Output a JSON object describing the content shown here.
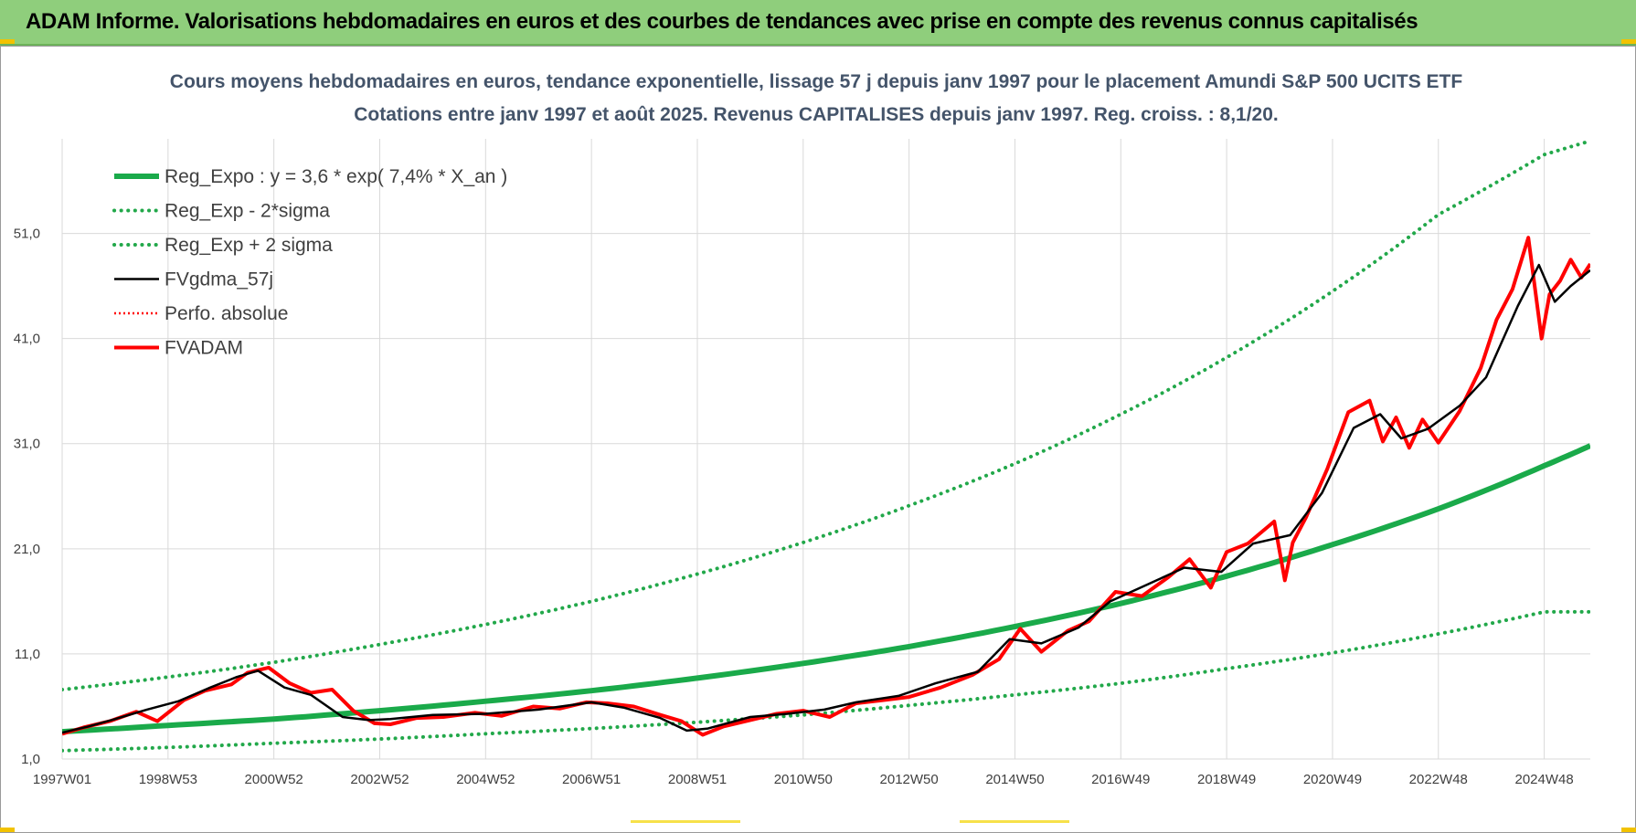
{
  "header": {
    "title": "ADAM Informe. Valorisations hebdomadaires en euros et des courbes de tendances avec prise en compte des revenus connus capitalisés"
  },
  "colors": {
    "banner": "#8fce7c",
    "reg_expo": "#1aaa4a",
    "reg_band": "#22a84a",
    "fvgdma": "#000000",
    "fvadam": "#ff0000",
    "perfo": "#ff0000",
    "grid": "#d9d9d9",
    "title_text": "#44546a"
  },
  "chart_data": {
    "type": "line",
    "title_line1": "Cours moyens hebdomadaires en euros, tendance exponentielle, lissage 57 j depuis janv 1997 pour le placement Amundi S&P 500 UCITS ETF",
    "title_line2": "Cotations entre janv 1997 et août 2025. Revenus CAPITALISES depuis janv 1997. Reg. croiss. : 8,1/20.",
    "xlabel": "",
    "ylabel": "",
    "x_ticks": [
      "1997W01",
      "1998W53",
      "2000W52",
      "2002W52",
      "2004W52",
      "2006W51",
      "2008W51",
      "2010W50",
      "2012W50",
      "2014W50",
      "2016W49",
      "2018W49",
      "2020W49",
      "2022W48",
      "2024W48"
    ],
    "x_tick_years": [
      1997.0,
      1999.0,
      2001.0,
      2003.0,
      2005.0,
      2007.0,
      2009.0,
      2011.0,
      2013.0,
      2015.0,
      2017.0,
      2019.0,
      2021.0,
      2023.0,
      2025.0
    ],
    "x_range": [
      1997.0,
      2025.87
    ],
    "y_ticks": [
      "1,0",
      "11,0",
      "21,0",
      "31,0",
      "41,0",
      "51,0"
    ],
    "y_tick_values": [
      1,
      11,
      21,
      31,
      41,
      51
    ],
    "ylim": [
      1,
      60
    ],
    "grid": true,
    "legend_position": "top-left",
    "series": [
      {
        "name": "Reg_Expo : y = 3,6 * exp( 7,4% *  X_an )",
        "style": "solid-thick",
        "x": [
          1997.0,
          1999.0,
          2001.0,
          2003.0,
          2005.0,
          2007.0,
          2009.0,
          2011.0,
          2013.0,
          2015.0,
          2017.0,
          2019.0,
          2021.0,
          2023.0,
          2025.0,
          2025.87
        ],
        "values": [
          3.6,
          4.2,
          4.8,
          5.6,
          6.5,
          7.5,
          8.7,
          10.1,
          11.7,
          13.6,
          15.8,
          18.4,
          21.4,
          24.8,
          28.9,
          30.8
        ]
      },
      {
        "name": "Reg_Exp - 2*sigma",
        "style": "dotted",
        "x": [
          1997.0,
          1999.0,
          2001.0,
          2003.0,
          2005.0,
          2007.0,
          2009.0,
          2011.0,
          2013.0,
          2015.0,
          2017.0,
          2019.0,
          2021.0,
          2023.0,
          2025.0,
          2025.87
        ],
        "values": [
          1.8,
          2.1,
          2.5,
          2.9,
          3.4,
          3.9,
          4.5,
          5.2,
          6.1,
          7.1,
          8.2,
          9.6,
          11.1,
          12.9,
          15.0,
          15.0
        ]
      },
      {
        "name": "Reg_Exp + 2 sigma",
        "style": "dotted",
        "x": [
          1997.0,
          1999.0,
          2001.0,
          2003.0,
          2005.0,
          2007.0,
          2009.0,
          2011.0,
          2013.0,
          2015.0,
          2017.0,
          2019.0,
          2021.0,
          2023.0,
          2025.0,
          2025.87
        ],
        "values": [
          7.6,
          8.8,
          10.2,
          11.9,
          13.8,
          16.0,
          18.6,
          21.6,
          25.1,
          29.1,
          33.8,
          39.2,
          45.5,
          52.8,
          58.5,
          59.8
        ]
      },
      {
        "name": "FVgdma_57j",
        "style": "solid",
        "x": [
          1997.0,
          1997.5,
          1998.0,
          1998.6,
          1999.2,
          1999.8,
          2000.3,
          2000.7,
          2001.2,
          2001.7,
          2002.3,
          2002.8,
          2003.2,
          2004.0,
          2005.0,
          2006.0,
          2007.0,
          2007.6,
          2008.3,
          2008.8,
          2009.2,
          2010.0,
          2010.7,
          2011.4,
          2012.0,
          2012.8,
          2013.5,
          2014.3,
          2014.9,
          2015.5,
          2016.2,
          2016.8,
          2017.5,
          2018.2,
          2018.9,
          2019.5,
          2020.2,
          2020.8,
          2021.4,
          2021.9,
          2022.3,
          2022.8,
          2023.4,
          2023.9,
          2024.5,
          2024.9,
          2025.2,
          2025.5,
          2025.87
        ],
        "values": [
          3.5,
          4.1,
          4.8,
          5.7,
          6.5,
          7.8,
          8.8,
          9.4,
          7.8,
          7.1,
          5.0,
          4.7,
          4.8,
          5.2,
          5.3,
          5.7,
          6.4,
          5.9,
          4.9,
          3.7,
          3.9,
          5.0,
          5.3,
          5.7,
          6.4,
          7.0,
          8.2,
          9.3,
          12.4,
          12.0,
          13.5,
          16.0,
          17.6,
          19.2,
          18.8,
          21.5,
          22.3,
          26.3,
          32.5,
          33.8,
          31.5,
          32.4,
          34.6,
          37.3,
          44.1,
          48.0,
          44.5,
          46.0,
          47.5
        ]
      },
      {
        "name": "Perfo. absolue",
        "style": "dotted"
      },
      {
        "name": "FVADAM",
        "style": "solid-thick",
        "x": [
          1997.0,
          1997.4,
          1997.9,
          1998.4,
          1998.8,
          1999.3,
          1999.7,
          2000.2,
          2000.5,
          2000.9,
          2001.3,
          2001.7,
          2002.1,
          2002.5,
          2002.9,
          2003.2,
          2003.7,
          2004.2,
          2004.8,
          2005.3,
          2005.9,
          2006.4,
          2006.9,
          2007.3,
          2007.8,
          2008.3,
          2008.7,
          2009.1,
          2009.5,
          2010.0,
          2010.5,
          2011.0,
          2011.5,
          2012.0,
          2012.5,
          2013.0,
          2013.6,
          2014.2,
          2014.7,
          2015.1,
          2015.5,
          2016.0,
          2016.4,
          2016.9,
          2017.4,
          2017.9,
          2018.3,
          2018.7,
          2019.0,
          2019.4,
          2019.9,
          2020.1,
          2020.25,
          2020.5,
          2020.9,
          2021.3,
          2021.7,
          2021.95,
          2022.2,
          2022.45,
          2022.7,
          2023.0,
          2023.4,
          2023.8,
          2024.1,
          2024.4,
          2024.7,
          2024.95,
          2025.1,
          2025.3,
          2025.5,
          2025.7,
          2025.87
        ],
        "values": [
          3.4,
          4.0,
          4.6,
          5.5,
          4.6,
          6.6,
          7.5,
          8.1,
          9.2,
          9.7,
          8.2,
          7.3,
          7.6,
          5.6,
          4.4,
          4.3,
          4.9,
          5.0,
          5.4,
          5.1,
          6.0,
          5.8,
          6.4,
          6.3,
          6.0,
          5.2,
          4.6,
          3.3,
          4.1,
          4.7,
          5.3,
          5.6,
          5.0,
          6.3,
          6.6,
          6.9,
          7.8,
          9.0,
          10.5,
          13.4,
          11.2,
          13.2,
          14.1,
          16.9,
          16.5,
          18.3,
          20.0,
          17.3,
          20.7,
          21.5,
          23.6,
          18.0,
          21.6,
          24.0,
          28.6,
          34.0,
          35.1,
          31.2,
          33.5,
          30.6,
          33.3,
          31.1,
          34.1,
          38.2,
          42.8,
          45.7,
          50.6,
          41.0,
          45.2,
          46.5,
          48.5,
          46.8,
          48.1
        ]
      }
    ]
  }
}
